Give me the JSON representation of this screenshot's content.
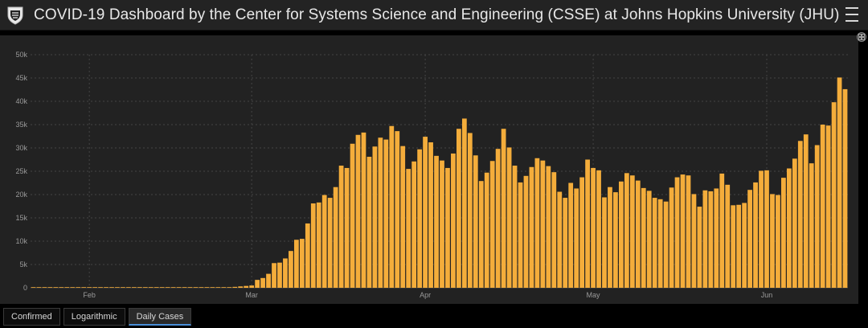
{
  "header": {
    "title": "COVID-19 Dashboard by the Center for Systems Science and Engineering (CSSE) at Johns Hopkins University (JHU)"
  },
  "colors": {
    "bar": "#f4ad3b",
    "panel": "#222222",
    "grid": "#444444",
    "axis_text": "#9a9a9a",
    "accent_tab": "#4a8fd8"
  },
  "tabs": [
    {
      "label": "Confirmed",
      "active": false
    },
    {
      "label": "Logarithmic",
      "active": false
    },
    {
      "label": "Daily Cases",
      "active": true
    }
  ],
  "chart_data": {
    "type": "bar",
    "title": "Daily Cases",
    "xlabel": "",
    "ylabel": "",
    "ylim": [
      0,
      50000
    ],
    "yticks": [
      0,
      5000,
      10000,
      15000,
      20000,
      25000,
      30000,
      35000,
      40000,
      45000,
      50000
    ],
    "ytick_labels": [
      "0",
      "5k",
      "10k",
      "15k",
      "20k",
      "25k",
      "30k",
      "35k",
      "40k",
      "45k",
      "50k"
    ],
    "month_labels": [
      {
        "label": "Feb",
        "day_index": 10
      },
      {
        "label": "Mar",
        "day_index": 39
      },
      {
        "label": "Apr",
        "day_index": 70
      },
      {
        "label": "May",
        "day_index": 100
      },
      {
        "label": "Jun",
        "day_index": 131
      }
    ],
    "series": [
      {
        "name": "Daily Cases",
        "values": [
          0,
          0,
          0,
          0,
          0,
          0,
          0,
          0,
          0,
          0,
          0,
          0,
          0,
          0,
          0,
          0,
          0,
          0,
          0,
          0,
          0,
          0,
          0,
          0,
          0,
          0,
          0,
          0,
          0,
          0,
          0,
          0,
          0,
          0,
          100,
          100,
          200,
          300,
          400,
          500,
          1700,
          2100,
          3000,
          5300,
          5400,
          6300,
          7900,
          10300,
          10500,
          13800,
          18100,
          18300,
          19900,
          19300,
          21600,
          26200,
          25700,
          30900,
          32800,
          33300,
          28100,
          30300,
          32200,
          31800,
          34700,
          33600,
          30400,
          25500,
          27100,
          29700,
          32400,
          31200,
          28300,
          27300,
          25700,
          28800,
          34100,
          36300,
          33200,
          28400,
          22900,
          24700,
          27200,
          29800,
          34100,
          30100,
          26200,
          22600,
          24000,
          25900,
          27800,
          27300,
          26100,
          24800,
          20600,
          19300,
          22500,
          21300,
          23700,
          27500,
          25700,
          25200,
          19400,
          21600,
          20500,
          22800,
          24600,
          24100,
          23000,
          21400,
          20800,
          19300,
          19000,
          18500,
          21500,
          23700,
          24300,
          24100,
          20100,
          17400,
          20900,
          20700,
          21300,
          24500,
          22100,
          17700,
          17800,
          18200,
          21000,
          22600,
          25100,
          25200,
          20100,
          19900,
          23600,
          25600,
          27700,
          31500,
          32900,
          26700,
          30600,
          35000,
          34800,
          39800,
          45100,
          42600
        ]
      }
    ]
  }
}
